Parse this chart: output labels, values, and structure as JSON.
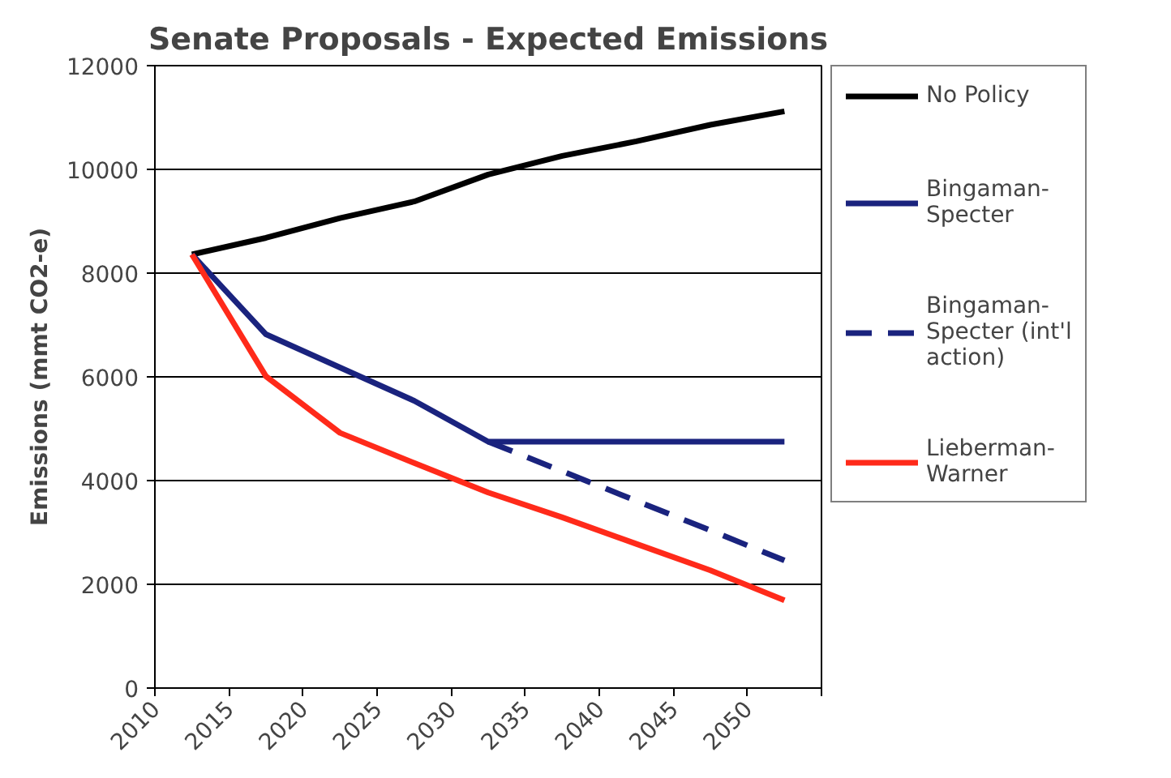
{
  "chart_data": {
    "type": "line",
    "title": "Senate Proposals - Expected Emissions",
    "ylabel": "Emissions (mmt CO2-e)",
    "x": [
      2012.5,
      2017.5,
      2022.5,
      2027.5,
      2032.5,
      2037.5,
      2042.5,
      2047.5,
      2052.5
    ],
    "xlim": [
      2010,
      2055
    ],
    "xticks": [
      2010,
      2015,
      2020,
      2025,
      2030,
      2035,
      2040,
      2045,
      2050,
      {
        "value": 2055,
        "label": null
      }
    ],
    "ylim": [
      0,
      12000
    ],
    "yticks": [
      0,
      2000,
      4000,
      6000,
      8000,
      10000,
      12000
    ],
    "grid": "y",
    "legend": "right",
    "marker": "none",
    "series": [
      {
        "name": "No Policy",
        "color": "#000000",
        "values": [
          8360,
          8680,
          9060,
          9380,
          9900,
          10260,
          10540,
          10860,
          11120
        ]
      },
      {
        "name": "Bingaman-Specter",
        "color": "#1a237e",
        "values": [
          8360,
          6820,
          6180,
          5540,
          4750,
          4750,
          4750,
          4750,
          4750
        ]
      },
      {
        "name": "Bingaman-Specter (int'l action)",
        "color": "#1a237e",
        "line_style": "dashed",
        "values": [
          null,
          null,
          null,
          null,
          4750,
          4180,
          3610,
          3040,
          2460
        ]
      },
      {
        "name": "Lieberman-Warner",
        "color": "#ff2a1a",
        "values": [
          8360,
          6010,
          4920,
          4340,
          3770,
          3290,
          2780,
          2270,
          1690
        ]
      }
    ]
  }
}
